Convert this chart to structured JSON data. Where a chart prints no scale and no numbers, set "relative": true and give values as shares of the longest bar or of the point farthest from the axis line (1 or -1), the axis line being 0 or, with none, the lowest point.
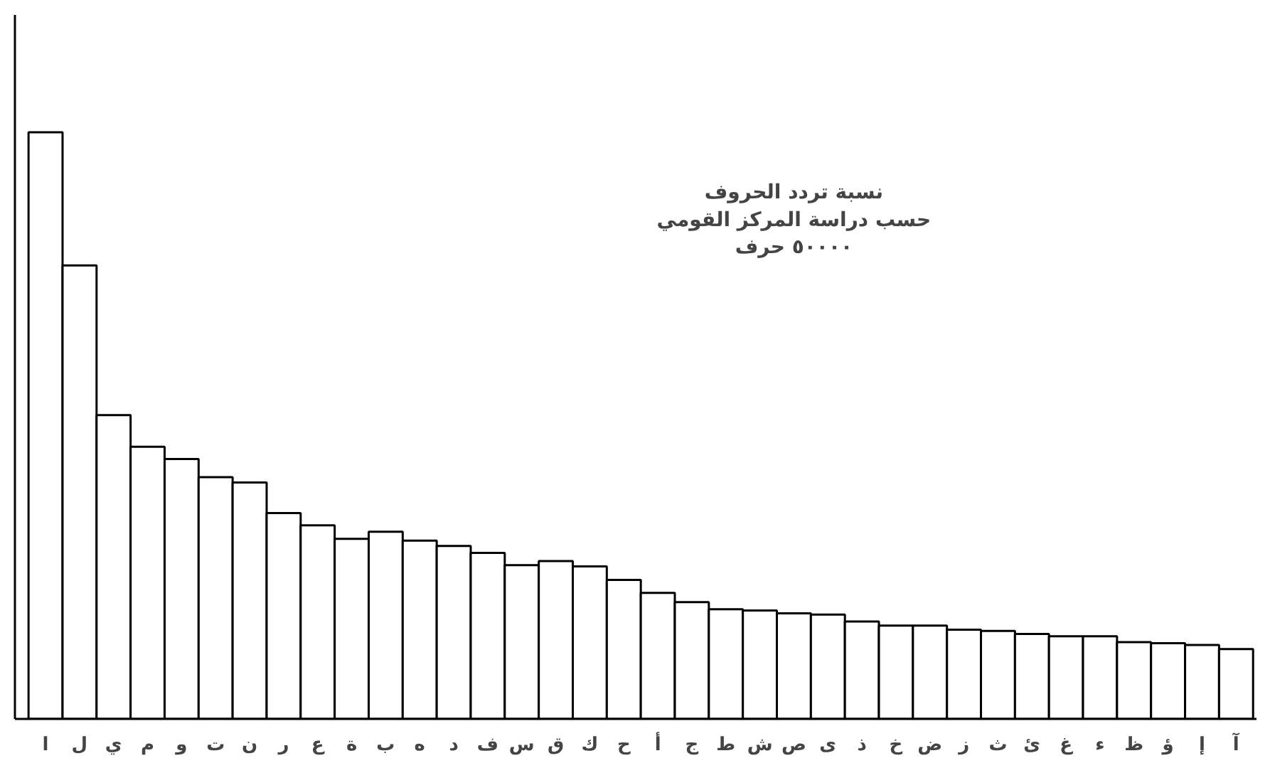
{
  "chart_data": {
    "type": "bar",
    "relative": true,
    "title": "نسبة تردد الحروف\nحسب دراسة المركز القومي\n٥٠٠٠٠ حرف",
    "categories": [
      "ا",
      "ل",
      "ي",
      "م",
      "و",
      "ت",
      "ن",
      "ر",
      "ع",
      "ة",
      "ب",
      "ه",
      "د",
      "ف",
      "س",
      "ق",
      "ك",
      "ح",
      "أ",
      "ج",
      "ط",
      "ش",
      "ص",
      "ى",
      "ذ",
      "خ",
      "ض",
      "ز",
      "ث",
      "ئ",
      "غ",
      "ء",
      "ظ",
      "ؤ",
      "إ",
      "آ"
    ],
    "values": [
      1,
      0.773,
      0.518,
      0.464,
      0.443,
      0.412,
      0.403,
      0.351,
      0.33,
      0.307,
      0.319,
      0.304,
      0.295,
      0.283,
      0.262,
      0.269,
      0.26,
      0.237,
      0.215,
      0.199,
      0.187,
      0.185,
      0.18,
      0.178,
      0.166,
      0.159,
      0.159,
      0.152,
      0.15,
      0.145,
      0.141,
      0.141,
      0.131,
      0.129,
      0.126,
      0.119
    ],
    "color": "#ffffff",
    "grid": false
  }
}
